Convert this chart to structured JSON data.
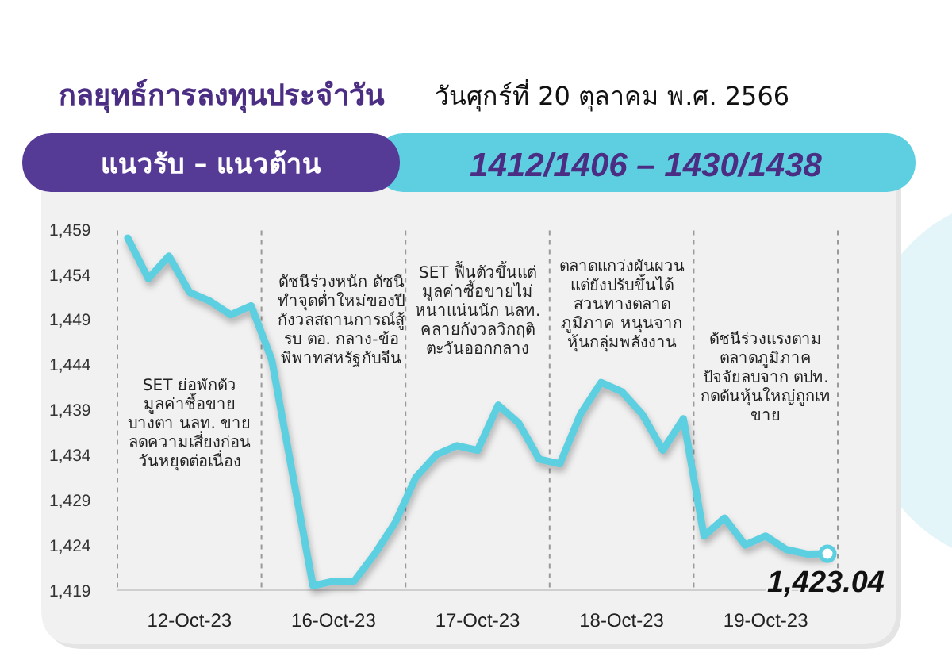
{
  "chart_data": {
    "type": "line",
    "title": "กลยุทธ์การลงทุนประจำวัน",
    "subtitle": "วันศุกร์ที่ 20 ตุลาคม พ.ศ. 2566",
    "categories": [
      null,
      null,
      null,
      "12-Oct-23",
      null,
      null,
      null,
      null,
      null,
      null,
      "16-Oct-23",
      null,
      null,
      null,
      null,
      null,
      null,
      "17-Oct-23",
      null,
      null,
      null,
      null,
      null,
      null,
      "18-Oct-23",
      null,
      null,
      null,
      null,
      null,
      null,
      "19-Oct-23",
      null,
      null,
      null
    ],
    "values": [
      1458,
      1453.5,
      1456,
      1452,
      1451,
      1449.5,
      1450.5,
      1444.5,
      1432,
      1419.5,
      1420,
      1420,
      1423,
      1426.5,
      1431.5,
      1434,
      1435,
      1434.5,
      1439.5,
      1437.5,
      1433.5,
      1433,
      1438.5,
      1442,
      1441,
      1438.5,
      1434.5,
      1438,
      1425,
      1427,
      1424,
      1425,
      1423.5,
      1423,
      1423.04
    ],
    "value_labels": [
      null,
      null,
      null,
      null,
      null,
      null,
      null,
      null,
      null,
      null,
      null,
      null,
      null,
      null,
      null,
      null,
      null,
      null,
      null,
      null,
      null,
      null,
      null,
      null,
      null,
      null,
      null,
      null,
      null,
      null,
      null,
      null,
      null,
      null,
      "1,423.04"
    ],
    "color": "#5ccfe0",
    "line_style": "solid",
    "grid": "x",
    "ylim": [
      1419,
      1459
    ],
    "yticks": [
      {
        "value": 1419,
        "label": "1,419"
      },
      {
        "value": 1424,
        "label": "1,424"
      },
      {
        "value": 1429,
        "label": "1,429"
      },
      {
        "value": 1434,
        "label": "1,434"
      },
      {
        "value": 1439,
        "label": "1,439"
      },
      {
        "value": 1444,
        "label": "1,444"
      },
      {
        "value": 1449,
        "label": "1,449"
      },
      {
        "value": 1454,
        "label": "1,454"
      },
      {
        "value": 1459,
        "label": "1,459"
      }
    ],
    "annotations": [
      "แนวรับ – แนวต้าน",
      "1412/1406 – 1430/1438",
      "SET ย่อพักตัว มูลค่าซื้อขายบางตา นลท. ขายลดความเสี่ยงก่อนวันหยุดต่อเนื่อง",
      "ดัชนีร่วงหนัก ดัชนีทำจุดต่ำใหม่ของปี กังวลสถานการณ์สู้รบ ตอ. กลาง-ข้อพิพาทสหรัฐกับจีน",
      "SET ฟื้นตัวขึ้นแต่มูลค่าซื้อขายไม่หนาแน่นนัก นลท. คลายกังวลวิกฤติตะวันออกกลาง",
      "ตลาดแกว่งผันผวน แต่ยังปรับขึ้นได้สวนทางตลาดภูมิภาค หนุนจากหุ้นกลุ่มพลังงาน",
      "ดัชนีร่วงแรงตามตลาดภูมิภาค ปัจจัยลบจาก ตปท. กดดันหุ้นใหญ่ถูกเทขาย"
    ]
  }
}
